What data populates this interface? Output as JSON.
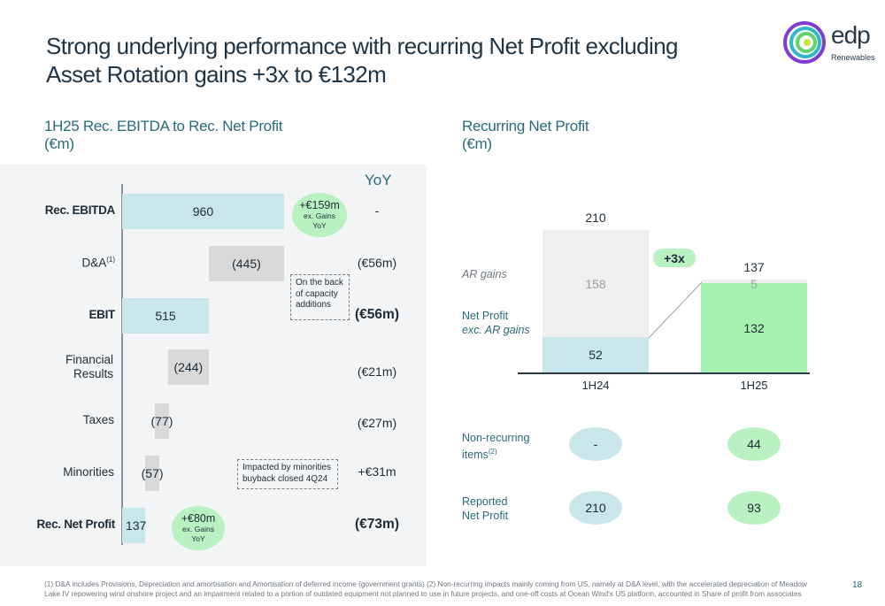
{
  "header": {
    "title_line1": "Strong underlying performance with recurring Net Profit excluding",
    "title_line2": "Asset Rotation gains +3x to €132m",
    "logo_text": "edp",
    "logo_sub": "Renewables"
  },
  "left": {
    "title": "1H25 Rec. EBITDA to Rec. Net Profit",
    "unit": "(€m)",
    "yoy_header": "YoY"
  },
  "right": {
    "title": "Recurring Net Profit",
    "unit": "(€m)"
  },
  "colors": {
    "blue_bar": "#c9e6ea",
    "grey_bar": "#d9d9d9",
    "green": "#b9f1c2",
    "rec_green": "#a5f2b0",
    "ar_grey": "#efefef",
    "teal_text": "#2a6a78"
  },
  "chart_data": [
    {
      "type": "bar",
      "subtype": "waterfall-horizontal",
      "title": "1H25 Rec. EBITDA to Rec. Net Profit",
      "unit": "(€m)",
      "rows": [
        {
          "label": "Rec. EBITDA",
          "value": 960,
          "display": "960",
          "kind": "total",
          "yoy": "-"
        },
        {
          "label": "D&A",
          "superscript": "(1)",
          "value": -445,
          "display": "(445)",
          "kind": "delta",
          "yoy": "(€56m)"
        },
        {
          "label": "EBIT",
          "value": 515,
          "display": "515",
          "kind": "total",
          "yoy": "(€56m)"
        },
        {
          "label_line1": "Financial",
          "label_line2": "Results",
          "value": -244,
          "display": "(244)",
          "kind": "delta",
          "yoy": "(€21m)"
        },
        {
          "label": "Taxes",
          "value": -77,
          "display": "(77)",
          "kind": "delta",
          "yoy": "(€27m)"
        },
        {
          "label": "Minorities",
          "value": -57,
          "display": "(57)",
          "kind": "delta",
          "yoy": "+€31m"
        },
        {
          "label": "Rec. Net Profit",
          "value": 137,
          "display": "137",
          "kind": "total",
          "yoy": "(€73m)"
        }
      ],
      "annotations": {
        "ebitda_bubble": {
          "line1": "+€159m",
          "line2": "ex. Gains",
          "line3": "YoY"
        },
        "netprofit_bubble": {
          "line1": "+€80m",
          "line2": "ex. Gains",
          "line3": "YoY"
        },
        "da_note": {
          "line1": "On the back",
          "line2": "of capacity",
          "line3": "additions"
        },
        "minorities_note": {
          "line1": "Impacted by minorities",
          "line2": "buyback closed 4Q24"
        }
      }
    },
    {
      "type": "bar",
      "subtype": "stacked",
      "title": "Recurring Net Profit",
      "unit": "(€m)",
      "categories": [
        "1H24",
        "1H25"
      ],
      "series": [
        {
          "name": "Net Profit exc. AR gains",
          "values": [
            52,
            132
          ]
        },
        {
          "name": "AR gains",
          "values": [
            158,
            5
          ]
        }
      ],
      "totals": [
        210,
        137
      ],
      "growth_badge": "+3x",
      "legend": {
        "ar": "AR gains",
        "np_line1": "Net Profit",
        "np_line2": "exc. AR gains"
      },
      "below": {
        "non_recurring": {
          "label_line1": "Non-recurring",
          "label_line2": "items",
          "sup": "(2)",
          "values": [
            "-",
            "44"
          ]
        },
        "reported": {
          "label_line1": "Reported",
          "label_line2": "Net Profit",
          "values": [
            "210",
            "93"
          ]
        }
      }
    }
  ],
  "footnote": "(1) D&A includes Provisions, Depreciation and amortisation and Amortisation of deferred income (government grants) (2) Non-recurring impacts mainly coming from US, namely at D&A level, with the accelerated depreciation of Meadow Lake IV repowering wind onshore project and an impairment related to a portion of outdated equipment not planned to use in future projects, and one-off costs at Ocean Wind's US platform, accounted in Share of profit from associates.",
  "page_number": "18"
}
